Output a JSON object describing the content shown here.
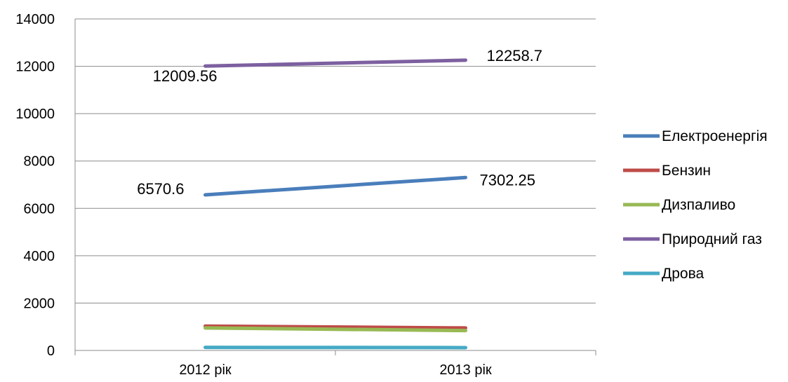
{
  "chart_data": {
    "type": "line",
    "title": "",
    "xlabel": "",
    "ylabel": "",
    "categories": [
      "2012 рік",
      "2013 рік"
    ],
    "ylim": [
      0,
      14000
    ],
    "yticks": [
      0,
      2000,
      4000,
      6000,
      8000,
      10000,
      12000,
      14000
    ],
    "grid": true,
    "legend_position": "right",
    "series": [
      {
        "name": "Електроенергія",
        "values": [
          6570.6,
          7302.25
        ],
        "color": "#4a7ebb",
        "labels": [
          "6570.6",
          "7302.25"
        ]
      },
      {
        "name": "Бензин",
        "values": [
          1030,
          950
        ],
        "color": "#be4b48",
        "labels": []
      },
      {
        "name": "Дизпаливо",
        "values": [
          950,
          840
        ],
        "color": "#98b954",
        "labels": []
      },
      {
        "name": "Природний газ",
        "values": [
          12009.56,
          12258.7
        ],
        "color": "#7d60a0",
        "labels": [
          "12009.56",
          "12258.7"
        ]
      },
      {
        "name": "Дрова",
        "values": [
          130,
          120
        ],
        "color": "#46aac5",
        "labels": []
      }
    ]
  }
}
